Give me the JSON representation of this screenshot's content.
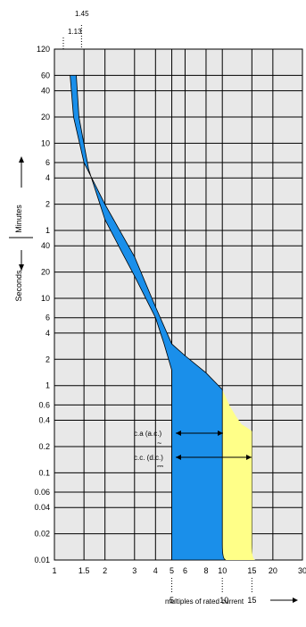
{
  "chart_data": {
    "type": "area",
    "title": "",
    "xlabel": "multiples of rated current",
    "ylabel_upper": "Minutes",
    "ylabel_lower": "Seconds",
    "x_scale": "log",
    "xlim": [
      1,
      30
    ],
    "grid": true,
    "x_ticks": [
      "1",
      "1.5",
      "2",
      "3",
      "4",
      "5",
      "6",
      "8",
      "10",
      "15",
      "20",
      "30"
    ],
    "y_ticks_minutes": [
      "120",
      "60",
      "40",
      "20",
      "10",
      "6",
      "4",
      "2",
      "1"
    ],
    "y_ticks_seconds": [
      "40",
      "20",
      "10",
      "6",
      "4",
      "2",
      "1",
      "0.6",
      "0.4",
      "0.2",
      "0.1",
      "0.06",
      "0.04",
      "0.02",
      "0.01"
    ],
    "top_markers": [
      "1.45",
      "1.13"
    ],
    "bottom_markers": [
      "5",
      "10",
      "15"
    ],
    "annotations": [
      "c.a (a.c.)",
      "~",
      "c.c. (d.c.)",
      "⎓"
    ],
    "series": [
      {
        "color": "#1a8fea",
        "upper_boundary_time_s": [
          [
            1.24,
            3600
          ],
          [
            1.3,
            1200
          ],
          [
            1.5,
            360
          ],
          [
            2,
            120
          ],
          [
            3,
            30
          ],
          [
            4,
            8
          ],
          [
            5,
            3
          ],
          [
            6,
            2.2
          ],
          [
            8,
            1.4
          ],
          [
            10,
            0.9
          ]
        ],
        "lower_boundary_time_s": [
          [
            1.35,
            3600
          ],
          [
            1.4,
            1200
          ],
          [
            1.6,
            300
          ],
          [
            2,
            80
          ],
          [
            2.5,
            35
          ],
          [
            3,
            18
          ],
          [
            4,
            6
          ],
          [
            4.5,
            3
          ],
          [
            5,
            1.5
          ]
        ]
      },
      {
        "color": "#ffff88",
        "upper_boundary_time_s": [
          [
            10,
            0.9
          ],
          [
            11,
            0.6
          ],
          [
            12,
            0.45
          ],
          [
            13,
            0.36
          ],
          [
            14,
            0.33
          ],
          [
            15,
            0.3
          ]
        ],
        "left_edge_x": 10,
        "right_edge_x": 15
      }
    ]
  }
}
